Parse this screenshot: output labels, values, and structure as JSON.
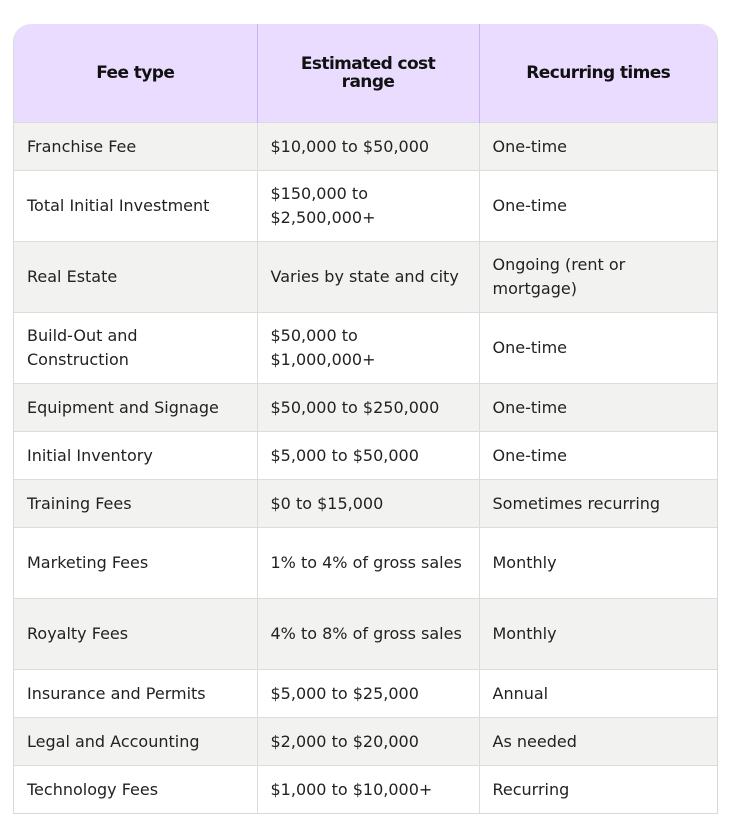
{
  "table": {
    "headers": [
      "Fee type",
      "Estimated cost range",
      "Recurring times"
    ],
    "rows": [
      {
        "fee_type": "Franchise Fee",
        "cost_range": "$10,000 to $50,000",
        "recurring": "One-time"
      },
      {
        "fee_type": "Total Initial Investment",
        "cost_range": "$150,000 to $2,500,000+",
        "recurring": "One-time"
      },
      {
        "fee_type": "Real Estate",
        "cost_range": "Varies by state and city",
        "recurring": "Ongoing (rent or mortgage)"
      },
      {
        "fee_type": "Build-Out and Construction",
        "cost_range": "$50,000 to $1,000,000+",
        "recurring": "One-time"
      },
      {
        "fee_type": "Equipment and Signage",
        "cost_range": "$50,000 to $250,000",
        "recurring": "One-time"
      },
      {
        "fee_type": "Initial Inventory",
        "cost_range": "$5,000 to $50,000",
        "recurring": "One-time"
      },
      {
        "fee_type": "Training Fees",
        "cost_range": "$0 to $15,000",
        "recurring": "Sometimes recurring"
      },
      {
        "fee_type": "Marketing Fees",
        "cost_range": "1% to 4% of gross sales",
        "recurring": "Monthly"
      },
      {
        "fee_type": "Royalty Fees",
        "cost_range": "4% to 8% of gross sales",
        "recurring": "Monthly"
      },
      {
        "fee_type": "Insurance and Permits",
        "cost_range": "$5,000 to $25,000",
        "recurring": "Annual"
      },
      {
        "fee_type": "Legal and Accounting",
        "cost_range": "$2,000 to $20,000",
        "recurring": "As needed"
      },
      {
        "fee_type": "Technology Fees",
        "cost_range": "$1,000 to $10,000+",
        "recurring": "Recurring"
      }
    ]
  },
  "colors": {
    "header_bg": "#eadcff",
    "header_divider": "#c6b3ef",
    "row_shaded": "#f2f2f0",
    "row_plain": "#ffffff",
    "grid": "#dcdcdc"
  }
}
